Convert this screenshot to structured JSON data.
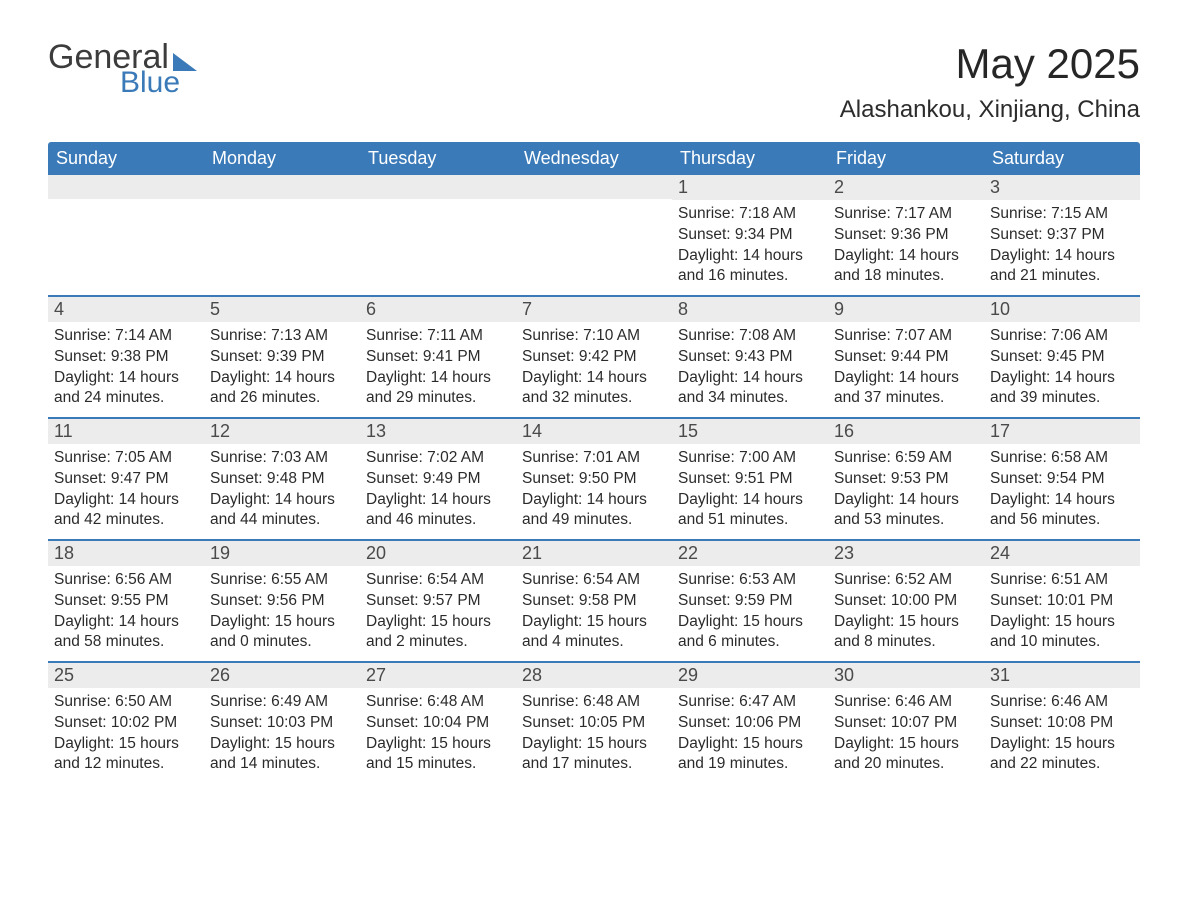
{
  "logo": {
    "word1": "General",
    "word2": "Blue"
  },
  "title": "May 2025",
  "location": "Alashankou, Xinjiang, China",
  "colors": {
    "header_bg": "#3b7ab8",
    "header_text": "#ffffff",
    "daybar_bg": "#ececec",
    "divider": "#3b7ab8",
    "text": "#2b2b2b",
    "title": "#262626"
  },
  "days_of_week": [
    "Sunday",
    "Monday",
    "Tuesday",
    "Wednesday",
    "Thursday",
    "Friday",
    "Saturday"
  ],
  "weeks": [
    [
      {
        "n": null
      },
      {
        "n": null
      },
      {
        "n": null
      },
      {
        "n": null
      },
      {
        "n": "1",
        "sunrise": "Sunrise: 7:18 AM",
        "sunset": "Sunset: 9:34 PM",
        "daylight": "Daylight: 14 hours and 16 minutes."
      },
      {
        "n": "2",
        "sunrise": "Sunrise: 7:17 AM",
        "sunset": "Sunset: 9:36 PM",
        "daylight": "Daylight: 14 hours and 18 minutes."
      },
      {
        "n": "3",
        "sunrise": "Sunrise: 7:15 AM",
        "sunset": "Sunset: 9:37 PM",
        "daylight": "Daylight: 14 hours and 21 minutes."
      }
    ],
    [
      {
        "n": "4",
        "sunrise": "Sunrise: 7:14 AM",
        "sunset": "Sunset: 9:38 PM",
        "daylight": "Daylight: 14 hours and 24 minutes."
      },
      {
        "n": "5",
        "sunrise": "Sunrise: 7:13 AM",
        "sunset": "Sunset: 9:39 PM",
        "daylight": "Daylight: 14 hours and 26 minutes."
      },
      {
        "n": "6",
        "sunrise": "Sunrise: 7:11 AM",
        "sunset": "Sunset: 9:41 PM",
        "daylight": "Daylight: 14 hours and 29 minutes."
      },
      {
        "n": "7",
        "sunrise": "Sunrise: 7:10 AM",
        "sunset": "Sunset: 9:42 PM",
        "daylight": "Daylight: 14 hours and 32 minutes."
      },
      {
        "n": "8",
        "sunrise": "Sunrise: 7:08 AM",
        "sunset": "Sunset: 9:43 PM",
        "daylight": "Daylight: 14 hours and 34 minutes."
      },
      {
        "n": "9",
        "sunrise": "Sunrise: 7:07 AM",
        "sunset": "Sunset: 9:44 PM",
        "daylight": "Daylight: 14 hours and 37 minutes."
      },
      {
        "n": "10",
        "sunrise": "Sunrise: 7:06 AM",
        "sunset": "Sunset: 9:45 PM",
        "daylight": "Daylight: 14 hours and 39 minutes."
      }
    ],
    [
      {
        "n": "11",
        "sunrise": "Sunrise: 7:05 AM",
        "sunset": "Sunset: 9:47 PM",
        "daylight": "Daylight: 14 hours and 42 minutes."
      },
      {
        "n": "12",
        "sunrise": "Sunrise: 7:03 AM",
        "sunset": "Sunset: 9:48 PM",
        "daylight": "Daylight: 14 hours and 44 minutes."
      },
      {
        "n": "13",
        "sunrise": "Sunrise: 7:02 AM",
        "sunset": "Sunset: 9:49 PM",
        "daylight": "Daylight: 14 hours and 46 minutes."
      },
      {
        "n": "14",
        "sunrise": "Sunrise: 7:01 AM",
        "sunset": "Sunset: 9:50 PM",
        "daylight": "Daylight: 14 hours and 49 minutes."
      },
      {
        "n": "15",
        "sunrise": "Sunrise: 7:00 AM",
        "sunset": "Sunset: 9:51 PM",
        "daylight": "Daylight: 14 hours and 51 minutes."
      },
      {
        "n": "16",
        "sunrise": "Sunrise: 6:59 AM",
        "sunset": "Sunset: 9:53 PM",
        "daylight": "Daylight: 14 hours and 53 minutes."
      },
      {
        "n": "17",
        "sunrise": "Sunrise: 6:58 AM",
        "sunset": "Sunset: 9:54 PM",
        "daylight": "Daylight: 14 hours and 56 minutes."
      }
    ],
    [
      {
        "n": "18",
        "sunrise": "Sunrise: 6:56 AM",
        "sunset": "Sunset: 9:55 PM",
        "daylight": "Daylight: 14 hours and 58 minutes."
      },
      {
        "n": "19",
        "sunrise": "Sunrise: 6:55 AM",
        "sunset": "Sunset: 9:56 PM",
        "daylight": "Daylight: 15 hours and 0 minutes."
      },
      {
        "n": "20",
        "sunrise": "Sunrise: 6:54 AM",
        "sunset": "Sunset: 9:57 PM",
        "daylight": "Daylight: 15 hours and 2 minutes."
      },
      {
        "n": "21",
        "sunrise": "Sunrise: 6:54 AM",
        "sunset": "Sunset: 9:58 PM",
        "daylight": "Daylight: 15 hours and 4 minutes."
      },
      {
        "n": "22",
        "sunrise": "Sunrise: 6:53 AM",
        "sunset": "Sunset: 9:59 PM",
        "daylight": "Daylight: 15 hours and 6 minutes."
      },
      {
        "n": "23",
        "sunrise": "Sunrise: 6:52 AM",
        "sunset": "Sunset: 10:00 PM",
        "daylight": "Daylight: 15 hours and 8 minutes."
      },
      {
        "n": "24",
        "sunrise": "Sunrise: 6:51 AM",
        "sunset": "Sunset: 10:01 PM",
        "daylight": "Daylight: 15 hours and 10 minutes."
      }
    ],
    [
      {
        "n": "25",
        "sunrise": "Sunrise: 6:50 AM",
        "sunset": "Sunset: 10:02 PM",
        "daylight": "Daylight: 15 hours and 12 minutes."
      },
      {
        "n": "26",
        "sunrise": "Sunrise: 6:49 AM",
        "sunset": "Sunset: 10:03 PM",
        "daylight": "Daylight: 15 hours and 14 minutes."
      },
      {
        "n": "27",
        "sunrise": "Sunrise: 6:48 AM",
        "sunset": "Sunset: 10:04 PM",
        "daylight": "Daylight: 15 hours and 15 minutes."
      },
      {
        "n": "28",
        "sunrise": "Sunrise: 6:48 AM",
        "sunset": "Sunset: 10:05 PM",
        "daylight": "Daylight: 15 hours and 17 minutes."
      },
      {
        "n": "29",
        "sunrise": "Sunrise: 6:47 AM",
        "sunset": "Sunset: 10:06 PM",
        "daylight": "Daylight: 15 hours and 19 minutes."
      },
      {
        "n": "30",
        "sunrise": "Sunrise: 6:46 AM",
        "sunset": "Sunset: 10:07 PM",
        "daylight": "Daylight: 15 hours and 20 minutes."
      },
      {
        "n": "31",
        "sunrise": "Sunrise: 6:46 AM",
        "sunset": "Sunset: 10:08 PM",
        "daylight": "Daylight: 15 hours and 22 minutes."
      }
    ]
  ]
}
